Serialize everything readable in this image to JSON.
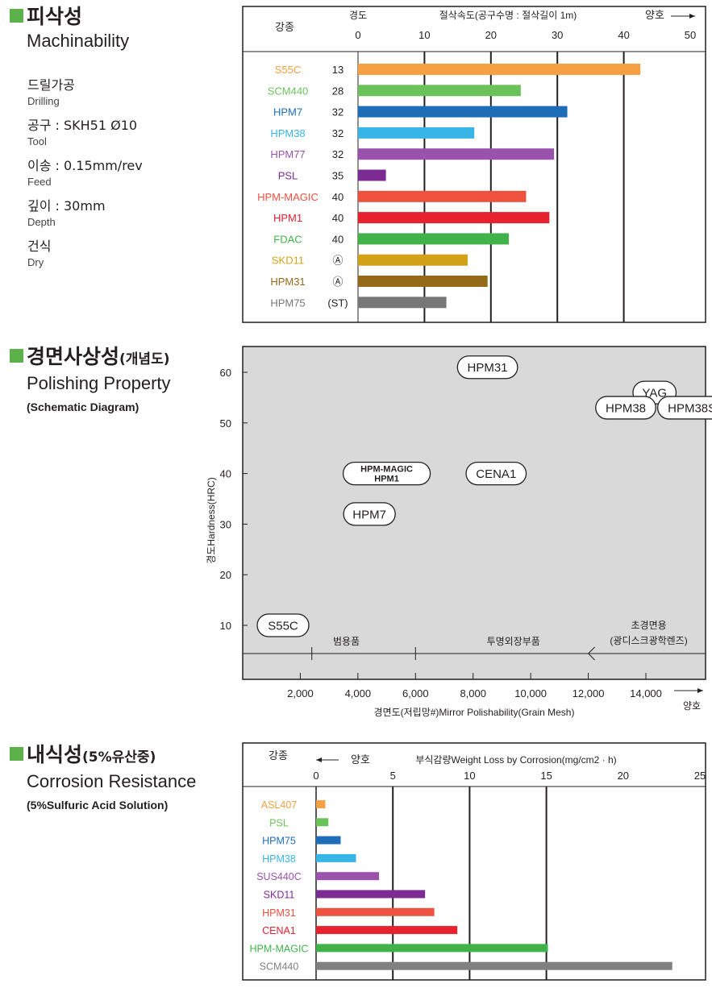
{
  "sections": {
    "machinability": {
      "title_kr": "피삭성",
      "title_en": "Machinability",
      "conditions": [
        {
          "kr": "드릴가공",
          "en": "Drilling"
        },
        {
          "kr": "공구 : SKH51 Ø10",
          "en": "Tool"
        },
        {
          "kr": "이송 : 0.15mm/rev",
          "en": "Feed"
        },
        {
          "kr": "깊이 : 30mm",
          "en": "Depth"
        },
        {
          "kr": "건식",
          "en": "Dry"
        }
      ]
    },
    "polishing": {
      "title_kr": "경면사상성",
      "title_kr_suffix": "(개념도)",
      "title_en": "Polishing Property",
      "subtitle": "(Schematic Diagram)"
    },
    "corrosion": {
      "title_kr": "내식성",
      "title_kr_suffix": "(5%유산중)",
      "title_en": "Corrosion Resistance",
      "subtitle": "(5%Sulfuric Acid Solution)"
    }
  },
  "chart_data": [
    {
      "type": "bar",
      "orientation": "horizontal",
      "header_grade": "강종",
      "header_hardness": "경도",
      "xlabel": "절삭속도(공구수명 : 절삭길이 1m)",
      "better_label": "양호",
      "better_direction": "right",
      "xlim": [
        0,
        50
      ],
      "xticks": [
        0,
        10,
        20,
        30,
        40,
        50
      ],
      "gridlines": [
        10,
        20,
        30,
        40
      ],
      "categories": [
        "S55C",
        "SCM440",
        "HPM7",
        "HPM38",
        "HPM77",
        "PSL",
        "HPM-MAGIC",
        "HPM1",
        "FDAC",
        "SKD11",
        "HPM31",
        "HPM75"
      ],
      "hardness": [
        "13",
        "28",
        "32",
        "32",
        "32",
        "35",
        "40",
        "40",
        "40",
        "Ⓐ",
        "Ⓐ",
        "(ST)"
      ],
      "values": [
        42.5,
        24.5,
        31.5,
        17.5,
        29.5,
        4.2,
        25.3,
        28.8,
        22.7,
        16.5,
        19.5,
        13.3
      ],
      "colors": [
        "#f5a043",
        "#6cc25a",
        "#1e6db8",
        "#38b5e6",
        "#9b52ad",
        "#7c2b93",
        "#ef5140",
        "#e8212f",
        "#3fb34a",
        "#d3a118",
        "#946a19",
        "#777777"
      ]
    },
    {
      "type": "scatter",
      "ylabel": "경도Hardness(HRC)",
      "xlabel": "경면도(저립망#)Mirror Polishability(Grain Mesh)",
      "better_label": "양호",
      "xlim": [
        0,
        16000
      ],
      "ylim": [
        3,
        68
      ],
      "xticks": [
        2000,
        4000,
        6000,
        8000,
        10000,
        12000,
        14000
      ],
      "xtick_labels": [
        "2,000",
        "4,000",
        "6,000",
        "8,000",
        "10,000",
        "12,000",
        "14,000"
      ],
      "yticks": [
        10,
        20,
        30,
        40,
        50,
        60
      ],
      "zones": [
        {
          "label": "범용품",
          "center": 3600
        },
        {
          "label": "투명외장부품",
          "center": 9400
        },
        {
          "label": "초경면용",
          "label2": "(광디스크광학렌즈)",
          "center": 14100
        }
      ],
      "zone_dividers": [
        2400,
        6000
      ],
      "points": [
        {
          "label": "HPM31",
          "x": 8500,
          "y": 61
        },
        {
          "label": "YAG",
          "x": 14300,
          "y": 56
        },
        {
          "label": "HPM38",
          "x": 13300,
          "y": 53
        },
        {
          "label": "HPM38S",
          "x": 15600,
          "y": 53
        },
        {
          "label": "HPM-MAGIC",
          "label2": "HPM1",
          "x": 5000,
          "y": 40
        },
        {
          "label": "CENA1",
          "x": 8800,
          "y": 40
        },
        {
          "label": "HPM7",
          "x": 4400,
          "y": 32
        },
        {
          "label": "S55C",
          "x": 1400,
          "y": 10
        }
      ]
    },
    {
      "type": "bar",
      "orientation": "horizontal",
      "header_grade": "강종",
      "better_label": "양호",
      "better_direction": "left",
      "xlabel": "부식감량Weight Loss by Corrosion(mg/cm2 · h)",
      "xlim": [
        0,
        25
      ],
      "xticks": [
        0,
        5,
        10,
        15,
        20,
        25
      ],
      "gridlines": [
        5,
        10,
        15
      ],
      "categories": [
        "ASL407",
        "PSL",
        "HPM75",
        "HPM38",
        "SUS440C",
        "SKD11",
        "HPM31",
        "CENA1",
        "HPM-MAGIC",
        "SCM440"
      ],
      "values": [
        0.6,
        0.8,
        1.6,
        2.6,
        4.1,
        7.1,
        7.7,
        9.2,
        15.1,
        23.2
      ],
      "colors": [
        "#f5a043",
        "#6cc25a",
        "#1e6db8",
        "#38b5e6",
        "#9b52ad",
        "#7c2b93",
        "#ef5140",
        "#e8212f",
        "#3fb34a",
        "#808080"
      ]
    }
  ]
}
